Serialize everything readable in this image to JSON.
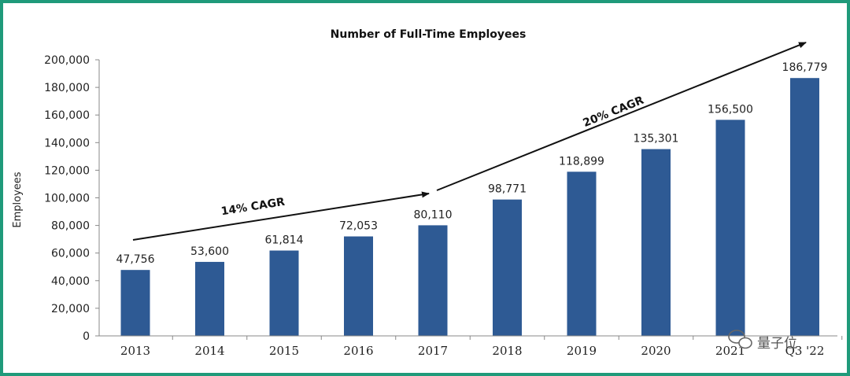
{
  "chart_data": {
    "type": "bar",
    "title": "Number of Full-Time Employees",
    "xlabel": "",
    "ylabel": "Employees",
    "categories": [
      "2013",
      "2014",
      "2015",
      "2016",
      "2017",
      "2018",
      "2019",
      "2020",
      "2021",
      "Q3 '22"
    ],
    "values": [
      47756,
      53600,
      61814,
      72053,
      80110,
      98771,
      118899,
      135301,
      156500,
      186779
    ],
    "data_labels": [
      "47,756",
      "53,600",
      "61,814",
      "72,053",
      "80,110",
      "98,771",
      "118,899",
      "135,301",
      "156,500",
      "186,779"
    ],
    "ylim": [
      0,
      200000
    ],
    "yticks": [
      0,
      20000,
      40000,
      60000,
      80000,
      100000,
      120000,
      140000,
      160000,
      180000,
      200000
    ],
    "ytick_labels": [
      "0",
      "20,000",
      "40,000",
      "60,000",
      "80,000",
      "100,000",
      "120,000",
      "140,000",
      "160,000",
      "180,000",
      "200,000"
    ],
    "grid": false,
    "bar_color": "#2e5a94",
    "annotations": [
      {
        "text": "14% CAGR",
        "from_category": "2013",
        "to_category": "2017"
      },
      {
        "text": "20% CAGR",
        "from_category": "2017",
        "to_category": "Q3 '22"
      }
    ]
  },
  "watermark": {
    "text": "量子位",
    "icon": "wechat-icon"
  },
  "colors": {
    "frame": "#1f9a7a",
    "bars": "#2e5a94",
    "text": "#222222"
  }
}
